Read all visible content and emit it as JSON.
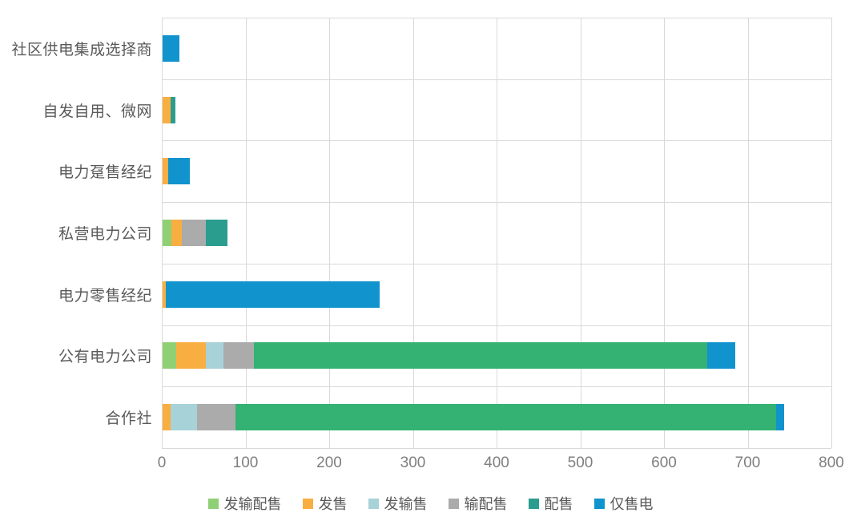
{
  "chart_data": {
    "type": "bar",
    "orientation": "horizontal",
    "stacked": true,
    "title": "",
    "xlabel": "",
    "ylabel": "",
    "xlim": [
      0,
      800
    ],
    "xticks": [
      0,
      100,
      200,
      300,
      400,
      500,
      600,
      700,
      800
    ],
    "grid": true,
    "legend_position": "bottom",
    "colors": {
      "gridline": "#d9d9d9",
      "category_label": "#595959",
      "tick_label": "#7f7f7f",
      "legend_label": "#595959",
      "big_green_segment": "#34B273"
    },
    "series": [
      {
        "name": "发输配售",
        "color": "#90D075"
      },
      {
        "name": "发售",
        "color": "#F9AE42"
      },
      {
        "name": "发输售",
        "color": "#A7D2D8"
      },
      {
        "name": "输配售",
        "color": "#ABABAB"
      },
      {
        "name": "配售",
        "color": "#2A9D8F"
      },
      {
        "name": "仅售电",
        "color": "#1193CE"
      }
    ],
    "categories": [
      "社区供电集成选择商",
      "自发自用、微网",
      "电力趸售经纪",
      "私营电力公司",
      "电力零售经纪",
      "公有电力公司",
      "合作社"
    ],
    "rows": [
      {
        "label": "社区供电集成选择商",
        "segments": [
          {
            "series": "仅售电",
            "value": 20
          }
        ]
      },
      {
        "label": "自发自用、微网",
        "segments": [
          {
            "series": "发售",
            "value": 10
          },
          {
            "series": "配售",
            "value": 5
          }
        ]
      },
      {
        "label": "电力趸售经纪",
        "segments": [
          {
            "series": "发售",
            "value": 7
          },
          {
            "series": "仅售电",
            "value": 26
          }
        ]
      },
      {
        "label": "私营电力公司",
        "segments": [
          {
            "series": "发输配售",
            "value": 11
          },
          {
            "series": "发售",
            "value": 12
          },
          {
            "series": "输配售",
            "value": 29
          },
          {
            "series": "配售",
            "value": 26
          }
        ]
      },
      {
        "label": "电力零售经纪",
        "segments": [
          {
            "series": "发售",
            "value": 4
          },
          {
            "series": "仅售电",
            "value": 255
          }
        ]
      },
      {
        "label": "公有电力公司",
        "segments": [
          {
            "series": "发输配售",
            "value": 16
          },
          {
            "series": "发售",
            "value": 36
          },
          {
            "series": "发输售",
            "value": 21
          },
          {
            "series": "输配售",
            "value": 36
          },
          {
            "series": "配售",
            "value": 542,
            "color": "#34B273"
          },
          {
            "series": "仅售电",
            "value": 33
          }
        ]
      },
      {
        "label": "合作社",
        "segments": [
          {
            "series": "发售",
            "value": 10
          },
          {
            "series": "发输售",
            "value": 31
          },
          {
            "series": "输配售",
            "value": 46
          },
          {
            "series": "配售",
            "value": 646,
            "color": "#34B273"
          },
          {
            "series": "仅售电",
            "value": 10
          }
        ]
      }
    ]
  }
}
